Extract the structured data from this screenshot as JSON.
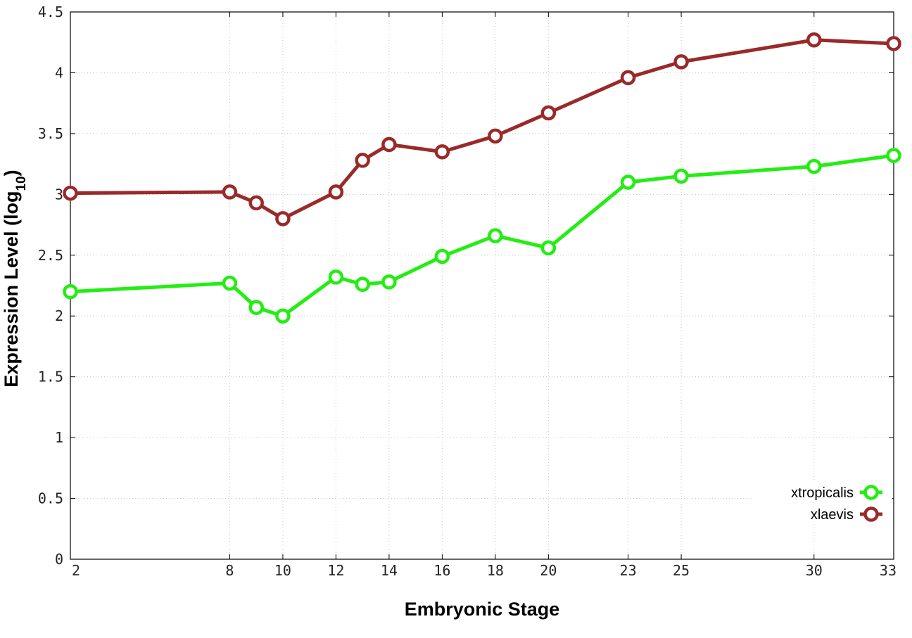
{
  "chart_data": {
    "type": "line",
    "title": "",
    "xlabel": "Embryonic Stage",
    "ylabel_main": "Expression Level (log",
    "ylabel_sub": "10",
    "ylabel_close": ")",
    "xlim": [
      2,
      33
    ],
    "ylim": [
      0,
      4.5
    ],
    "x_ticks": [
      2,
      8,
      10,
      12,
      14,
      16,
      18,
      20,
      23,
      25,
      30,
      33
    ],
    "x_tick_labels": [
      "2",
      "8",
      "10",
      "12",
      "14",
      "16",
      "18",
      "20",
      "23",
      "25",
      "30",
      "33"
    ],
    "y_ticks": [
      0,
      0.5,
      1,
      1.5,
      2,
      2.5,
      3,
      3.5,
      4,
      4.5
    ],
    "y_tick_labels": [
      "0",
      "0.5",
      "1",
      "1.5",
      "2",
      "2.5",
      "3",
      "3.5",
      "4",
      "4.5"
    ],
    "grid": true,
    "legend_position": "bottom-right",
    "x": [
      2,
      8,
      9,
      10,
      12,
      13,
      14,
      16,
      18,
      20,
      23,
      25,
      30,
      33
    ],
    "series": [
      {
        "name": "xtropicalis",
        "color": "#22ee11",
        "marker": "open-circle",
        "values": [
          2.2,
          2.27,
          2.07,
          2.0,
          2.32,
          2.26,
          2.28,
          2.49,
          2.66,
          2.56,
          3.1,
          3.15,
          3.23,
          3.32
        ]
      },
      {
        "name": "xlaevis",
        "color": "#992a2a",
        "marker": "open-circle",
        "values": [
          3.01,
          3.02,
          2.93,
          2.8,
          3.02,
          3.28,
          3.41,
          3.35,
          3.48,
          3.67,
          3.96,
          4.09,
          4.27,
          4.24
        ]
      }
    ]
  }
}
